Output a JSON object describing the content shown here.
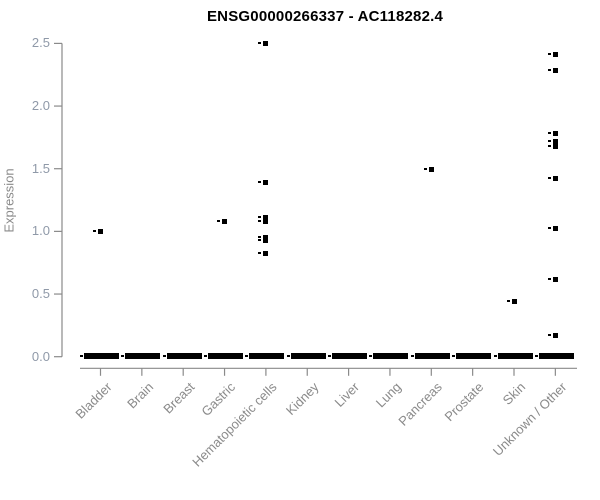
{
  "colors": {
    "point": "#000000",
    "axis_line": "#8a8a8a",
    "axis_text": "#8a8a8a",
    "title_text": "#000000",
    "background": "#ffffff"
  },
  "chart_data": {
    "type": "scatter",
    "title": "ENSG00000266337 - AC118282.4",
    "xlabel": "",
    "ylabel": "Expression",
    "ylim": [
      0.0,
      2.5
    ],
    "yticks": [
      0.0,
      0.5,
      1.0,
      1.5,
      2.0,
      2.5
    ],
    "ytick_labels": [
      "0.0",
      "0.5",
      "1.0",
      "1.5",
      "2.0",
      "2.5"
    ],
    "grid": "off",
    "legend": "none",
    "marker": "filled black square with small left dash",
    "categories": [
      "Bladder",
      "Brain",
      "Breast",
      "Gastric",
      "Hematopoietic cells",
      "Kidney",
      "Liver",
      "Lung",
      "Pancreas",
      "Prostate",
      "Skin",
      "Unknown / Other"
    ],
    "series": [
      {
        "category": "Bladder",
        "nonzero_values": [
          1.0
        ],
        "zero_cluster": true
      },
      {
        "category": "Brain",
        "nonzero_values": [],
        "zero_cluster": true
      },
      {
        "category": "Breast",
        "nonzero_values": [],
        "zero_cluster": true
      },
      {
        "category": "Gastric",
        "nonzero_values": [
          1.08
        ],
        "zero_cluster": true
      },
      {
        "category": "Hematopoietic cells",
        "nonzero_values": [
          2.5,
          1.39,
          1.11,
          1.08,
          0.95,
          0.93,
          0.82
        ],
        "zero_cluster": true
      },
      {
        "category": "Kidney",
        "nonzero_values": [],
        "zero_cluster": true
      },
      {
        "category": "Liver",
        "nonzero_values": [],
        "zero_cluster": true
      },
      {
        "category": "Lung",
        "nonzero_values": [],
        "zero_cluster": true
      },
      {
        "category": "Pancreas",
        "nonzero_values": [
          1.49
        ],
        "zero_cluster": true
      },
      {
        "category": "Prostate",
        "nonzero_values": [],
        "zero_cluster": true
      },
      {
        "category": "Skin",
        "nonzero_values": [
          0.44
        ],
        "zero_cluster": true
      },
      {
        "category": "Unknown / Other",
        "nonzero_values": [
          2.41,
          2.28,
          1.78,
          1.72,
          1.68,
          1.42,
          1.02,
          0.62,
          0.17
        ],
        "zero_cluster": true
      }
    ]
  }
}
